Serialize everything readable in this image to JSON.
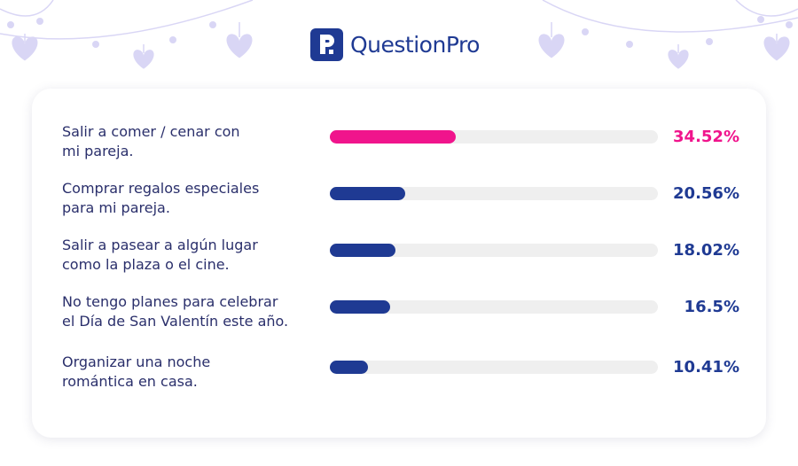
{
  "logo": {
    "text": "QuestionPro",
    "icon": "questionpro-logo-icon",
    "color": "#1f3a93"
  },
  "decor": {
    "icon": "heart-icon",
    "heart_color": "#d9d6f5",
    "string_color": "#d9d6f5"
  },
  "chart_data": {
    "type": "bar",
    "orientation": "horizontal",
    "categories": [
      "Salir a comer / cenar con\nmi pareja.",
      "Comprar regalos especiales\npara mi pareja.",
      "Salir a pasear a algún lugar\ncomo la plaza o el cine.",
      "No tengo planes para celebrar\nel Día de San Valentín este año.",
      "Organizar una noche\nromántica en casa."
    ],
    "values": [
      34.52,
      20.56,
      18.02,
      16.5,
      10.41
    ],
    "value_labels": [
      "34.52%",
      "20.56%",
      "18.02%",
      "16.5%",
      "10.41%"
    ],
    "unit": "%",
    "xlim": [
      0,
      90
    ],
    "grid": false,
    "legend": "none",
    "colors": {
      "highlight": "#f0148c",
      "default": "#1f3a93",
      "track": "#efefef"
    }
  }
}
